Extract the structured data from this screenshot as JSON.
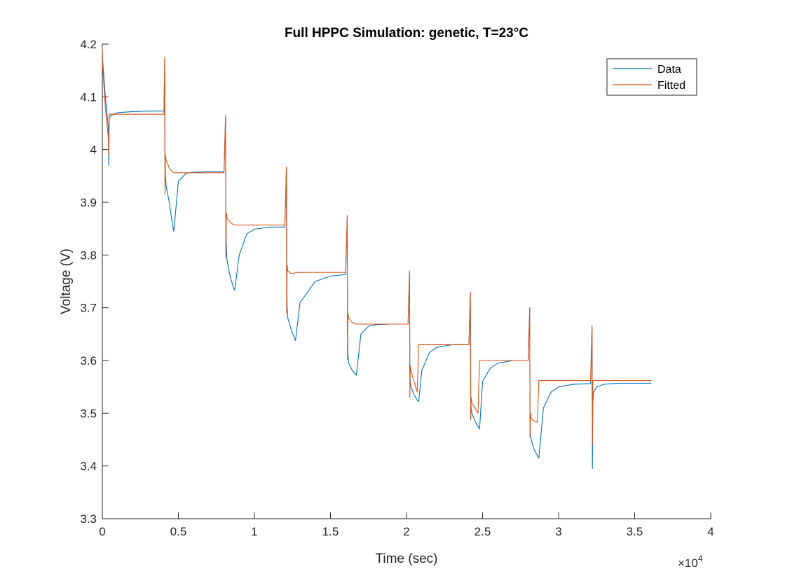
{
  "chart_data": {
    "type": "line",
    "title": "Full HPPC Simulation: genetic, T=23°C",
    "xlabel": "Time (sec)",
    "ylabel": "Voltage (V)",
    "x_exponent_base": "×10",
    "x_exponent_power": "4",
    "xlim": [
      0,
      4
    ],
    "ylim": [
      3.3,
      4.2
    ],
    "xticks": [
      0,
      0.5,
      1,
      1.5,
      2,
      2.5,
      3,
      3.5,
      4
    ],
    "xtick_labels": [
      "0",
      "0.5",
      "1",
      "1.5",
      "2",
      "2.5",
      "3",
      "3.5",
      "4"
    ],
    "yticks": [
      3.3,
      3.4,
      3.5,
      3.6,
      3.7,
      3.8,
      3.9,
      4.0,
      4.1,
      4.2
    ],
    "ytick_labels": [
      "3.3",
      "3.4",
      "3.5",
      "3.6",
      "3.7",
      "3.8",
      "3.9",
      "4",
      "4.1",
      "4.2"
    ],
    "grid": false,
    "legend_position": "top-right",
    "series": [
      {
        "name": "Data",
        "color": "#0072BD",
        "x": [
          0,
          0.002,
          0.02,
          0.04,
          0.042,
          0.045,
          0.06,
          0.1,
          0.2,
          0.3,
          0.405,
          0.41,
          0.412,
          0.415,
          0.42,
          0.44,
          0.46,
          0.47,
          0.5,
          0.55,
          0.6,
          0.7,
          0.8,
          0.81,
          0.812,
          0.815,
          0.82,
          0.84,
          0.86,
          0.87,
          0.9,
          0.95,
          1.0,
          1.1,
          1.2,
          1.21,
          1.212,
          1.215,
          1.22,
          1.24,
          1.26,
          1.27,
          1.3,
          1.35,
          1.4,
          1.5,
          1.6,
          1.61,
          1.612,
          1.615,
          1.62,
          1.64,
          1.66,
          1.67,
          1.7,
          1.75,
          1.8,
          1.9,
          2.01,
          2.02,
          2.022,
          2.025,
          2.03,
          2.05,
          2.07,
          2.08,
          2.1,
          2.15,
          2.2,
          2.3,
          2.41,
          2.42,
          2.422,
          2.425,
          2.43,
          2.45,
          2.47,
          2.48,
          2.5,
          2.55,
          2.6,
          2.7,
          2.8,
          2.81,
          2.812,
          2.815,
          2.82,
          2.84,
          2.86,
          2.87,
          2.9,
          2.95,
          3.0,
          3.1,
          3.21,
          3.22,
          3.222,
          3.225,
          3.23,
          3.25,
          3.3,
          3.35,
          3.4,
          3.5,
          3.61
        ],
        "y": [
          4.19,
          4.17,
          4.1,
          4.04,
          3.97,
          4.06,
          4.065,
          4.07,
          4.072,
          4.073,
          4.073,
          4.17,
          4.0,
          3.95,
          3.93,
          3.9,
          3.86,
          3.845,
          3.94,
          3.955,
          3.957,
          3.958,
          3.958,
          4.06,
          3.87,
          3.82,
          3.79,
          3.76,
          3.74,
          3.733,
          3.8,
          3.84,
          3.849,
          3.853,
          3.853,
          3.965,
          3.76,
          3.7,
          3.68,
          3.66,
          3.645,
          3.638,
          3.71,
          3.73,
          3.75,
          3.76,
          3.763,
          3.87,
          3.66,
          3.61,
          3.595,
          3.583,
          3.575,
          3.572,
          3.65,
          3.665,
          3.668,
          3.669,
          3.669,
          3.765,
          3.57,
          3.56,
          3.55,
          3.535,
          3.525,
          3.522,
          3.58,
          3.615,
          3.625,
          3.63,
          3.63,
          3.725,
          3.53,
          3.51,
          3.5,
          3.485,
          3.475,
          3.47,
          3.56,
          3.585,
          3.595,
          3.6,
          3.6,
          3.7,
          3.48,
          3.46,
          3.45,
          3.43,
          3.42,
          3.415,
          3.51,
          3.54,
          3.55,
          3.555,
          3.556,
          3.66,
          3.395,
          3.52,
          3.54,
          3.55,
          3.555,
          3.556,
          3.557,
          3.557,
          3.557
        ]
      },
      {
        "name": "Fitted",
        "color": "#D95319",
        "x": [
          0,
          0.002,
          0.02,
          0.04,
          0.042,
          0.045,
          0.06,
          0.1,
          0.2,
          0.3,
          0.405,
          0.41,
          0.412,
          0.415,
          0.42,
          0.44,
          0.46,
          0.47,
          0.5,
          0.55,
          0.6,
          0.7,
          0.8,
          0.81,
          0.812,
          0.815,
          0.82,
          0.84,
          0.86,
          0.87,
          0.9,
          0.95,
          1.0,
          1.1,
          1.2,
          1.21,
          1.212,
          1.215,
          1.22,
          1.24,
          1.26,
          1.27,
          1.3,
          1.35,
          1.4,
          1.5,
          1.6,
          1.61,
          1.612,
          1.615,
          1.62,
          1.64,
          1.66,
          1.67,
          1.7,
          1.75,
          1.8,
          1.9,
          2.01,
          2.02,
          2.022,
          2.025,
          2.03,
          2.05,
          2.07,
          2.08,
          2.1,
          2.15,
          2.2,
          2.3,
          2.41,
          2.42,
          2.422,
          2.425,
          2.43,
          2.45,
          2.47,
          2.48,
          2.5,
          2.55,
          2.6,
          2.7,
          2.8,
          2.81,
          2.812,
          2.815,
          2.82,
          2.84,
          2.86,
          2.87,
          2.9,
          2.95,
          3.0,
          3.1,
          3.21,
          3.22,
          3.222,
          3.225,
          3.23,
          3.25,
          3.3,
          3.35,
          3.4,
          3.5,
          3.61
        ],
        "y": [
          4.195,
          4.16,
          4.08,
          4.02,
          3.99,
          4.067,
          4.067,
          4.067,
          4.067,
          4.067,
          4.067,
          4.175,
          3.915,
          3.99,
          3.98,
          3.965,
          3.958,
          3.956,
          3.956,
          3.956,
          3.956,
          3.956,
          3.956,
          4.065,
          3.795,
          3.88,
          3.87,
          3.862,
          3.858,
          3.857,
          3.857,
          3.857,
          3.857,
          3.857,
          3.857,
          3.967,
          3.69,
          3.78,
          3.77,
          3.765,
          3.765,
          3.767,
          3.767,
          3.767,
          3.767,
          3.767,
          3.767,
          3.875,
          3.602,
          3.69,
          3.68,
          3.673,
          3.67,
          3.669,
          3.669,
          3.669,
          3.669,
          3.669,
          3.669,
          3.77,
          3.53,
          3.59,
          3.58,
          3.56,
          3.54,
          3.63,
          3.63,
          3.63,
          3.63,
          3.63,
          3.63,
          3.73,
          3.487,
          3.53,
          3.52,
          3.51,
          3.5,
          3.6,
          3.6,
          3.6,
          3.6,
          3.6,
          3.6,
          3.7,
          3.455,
          3.5,
          3.49,
          3.485,
          3.483,
          3.562,
          3.562,
          3.562,
          3.562,
          3.562,
          3.562,
          3.667,
          3.44,
          3.562,
          3.562,
          3.562,
          3.562,
          3.562,
          3.562,
          3.562,
          3.562
        ]
      }
    ]
  }
}
